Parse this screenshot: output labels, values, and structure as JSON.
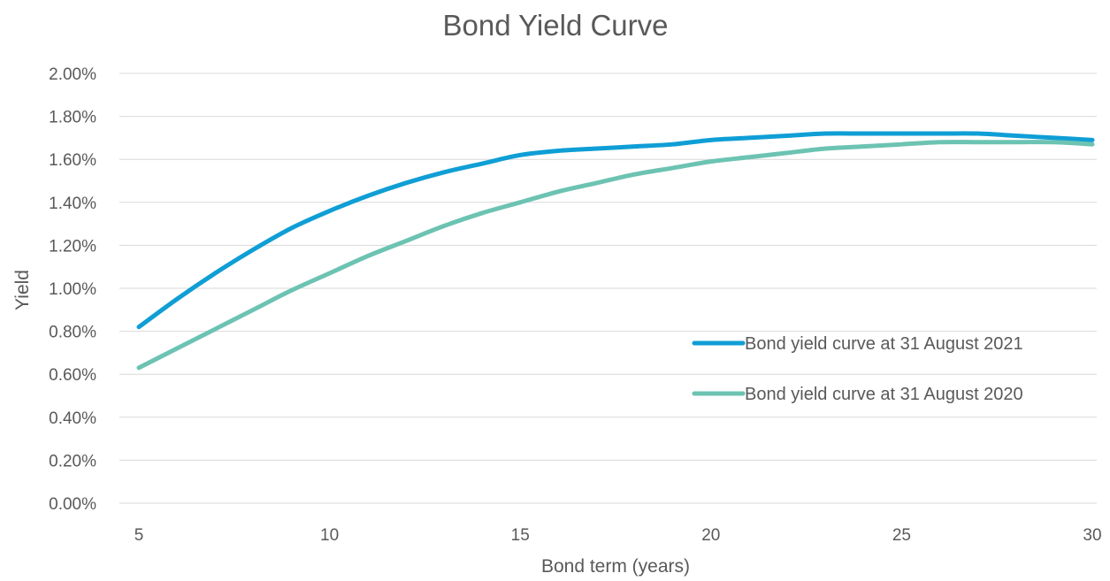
{
  "chart_data": {
    "type": "line",
    "title": "Bond Yield Curve",
    "xlabel": "Bond term (years)",
    "ylabel": "Yield",
    "xlim": [
      5,
      30
    ],
    "ylim": [
      0,
      2.0
    ],
    "x_ticks": [
      5,
      10,
      15,
      20,
      25,
      30
    ],
    "y_ticks": [
      "0.00%",
      "0.20%",
      "0.40%",
      "0.60%",
      "0.80%",
      "1.00%",
      "1.20%",
      "1.40%",
      "1.60%",
      "1.80%",
      "2.00%"
    ],
    "y_tick_values": [
      0,
      0.2,
      0.4,
      0.6,
      0.8,
      1.0,
      1.2,
      1.4,
      1.6,
      1.8,
      2.0
    ],
    "grid": true,
    "legend_position": "right",
    "x": [
      5,
      6,
      7,
      8,
      9,
      10,
      11,
      12,
      13,
      14,
      15,
      16,
      17,
      18,
      19,
      20,
      21,
      22,
      23,
      24,
      25,
      26,
      27,
      28,
      29,
      30
    ],
    "series": [
      {
        "name": "Bond yield curve at 31 August 2021",
        "color": "#0f9ed5",
        "values": [
          0.82,
          0.95,
          1.07,
          1.18,
          1.28,
          1.36,
          1.43,
          1.49,
          1.54,
          1.58,
          1.62,
          1.64,
          1.65,
          1.66,
          1.67,
          1.69,
          1.7,
          1.71,
          1.72,
          1.72,
          1.72,
          1.72,
          1.72,
          1.71,
          1.7,
          1.69
        ]
      },
      {
        "name": "Bond yield curve at 31 August 2020",
        "color": "#6cc3b2",
        "values": [
          0.63,
          0.72,
          0.81,
          0.9,
          0.99,
          1.07,
          1.15,
          1.22,
          1.29,
          1.35,
          1.4,
          1.45,
          1.49,
          1.53,
          1.56,
          1.59,
          1.61,
          1.63,
          1.65,
          1.66,
          1.67,
          1.68,
          1.68,
          1.68,
          1.68,
          1.67
        ]
      }
    ]
  }
}
